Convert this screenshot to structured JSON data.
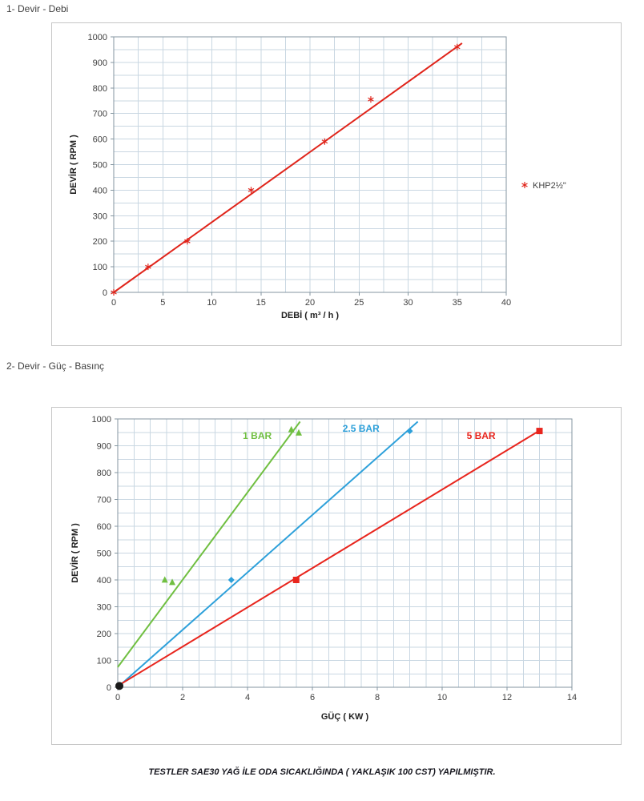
{
  "page": {
    "section1_title": "1- Devir - Debi",
    "section2_title": "2- Devir - Güç - Basınç",
    "footer_note": "TESTLER SAE30 YAĞ İLE ODA SICAKLIĞINDA ( YAKLAŞIK 100 CST) YAPILMIŞTIR."
  },
  "theme": {
    "background": "#ffffff",
    "grid_color": "#c9d7e2",
    "axis_color": "#8496a0",
    "tick_text_color": "#404040",
    "axis_title_color": "#1f1f1f"
  },
  "chart_data": [
    {
      "type": "scatter",
      "title": "1- Devir - Debi",
      "xlabel": "DEBİ ( m³ / h )",
      "ylabel": "DEVİR ( RPM )",
      "xlim": [
        0,
        40
      ],
      "ylim": [
        0,
        1000
      ],
      "xtick_step": 5,
      "ytick_step": 100,
      "x_grid_step": 2.5,
      "y_grid_step": 50,
      "grid": true,
      "legend": true,
      "legend_position": "right",
      "series": [
        {
          "name": "KHP2½\"",
          "color": "#e0251b",
          "marker": "star",
          "points": [
            [
              0,
              0
            ],
            [
              3.5,
              100
            ],
            [
              7.5,
              200
            ],
            [
              14,
              400
            ],
            [
              21.5,
              590
            ],
            [
              26.2,
              755
            ],
            [
              35,
              960
            ]
          ],
          "line": [
            [
              0,
              0
            ],
            [
              35.5,
              975
            ]
          ]
        }
      ]
    },
    {
      "type": "scatter",
      "title": "2- Devir - Güç - Basınç",
      "xlabel": "GÜÇ ( KW )",
      "ylabel": "DEVİR ( RPM )",
      "xlim": [
        0,
        14
      ],
      "ylim": [
        0,
        1000
      ],
      "xtick_step": 2,
      "ytick_step": 100,
      "x_grid_step": 0.5,
      "y_grid_step": 50,
      "grid": true,
      "legend": false,
      "series": [
        {
          "name": "1 BAR",
          "color": "#70bf41",
          "marker": "triangle",
          "points": [
            [
              1.45,
              402
            ],
            [
              1.68,
              393
            ],
            [
              5.35,
              962
            ],
            [
              5.58,
              950
            ]
          ],
          "line": [
            [
              0,
              75
            ],
            [
              5.62,
              990
            ]
          ]
        },
        {
          "name": "2.5 BAR",
          "color": "#2da0da",
          "marker": "diamond",
          "points": [
            [
              3.5,
              400
            ],
            [
              9,
              955
            ]
          ],
          "line": [
            [
              0,
              0
            ],
            [
              9.25,
              990
            ]
          ]
        },
        {
          "name": "5 BAR",
          "color": "#e8251d",
          "marker": "square",
          "points": [
            [
              5.5,
              400
            ],
            [
              13,
              955
            ]
          ],
          "line": [
            [
              0,
              5
            ],
            [
              13.05,
              960
            ]
          ]
        },
        {
          "name": "origin",
          "color": "#1a1a1a",
          "marker": "circle",
          "points": [
            [
              0.05,
              5
            ]
          ],
          "line": null
        }
      ],
      "annotations": [
        {
          "text": "1 BAR",
          "x": 4.3,
          "y": 925,
          "color": "#70bf41"
        },
        {
          "text": "2.5 BAR",
          "x": 7.5,
          "y": 952,
          "color": "#2da0da"
        },
        {
          "text": "5 BAR",
          "x": 11.2,
          "y": 925,
          "color": "#e8251d"
        }
      ]
    }
  ]
}
